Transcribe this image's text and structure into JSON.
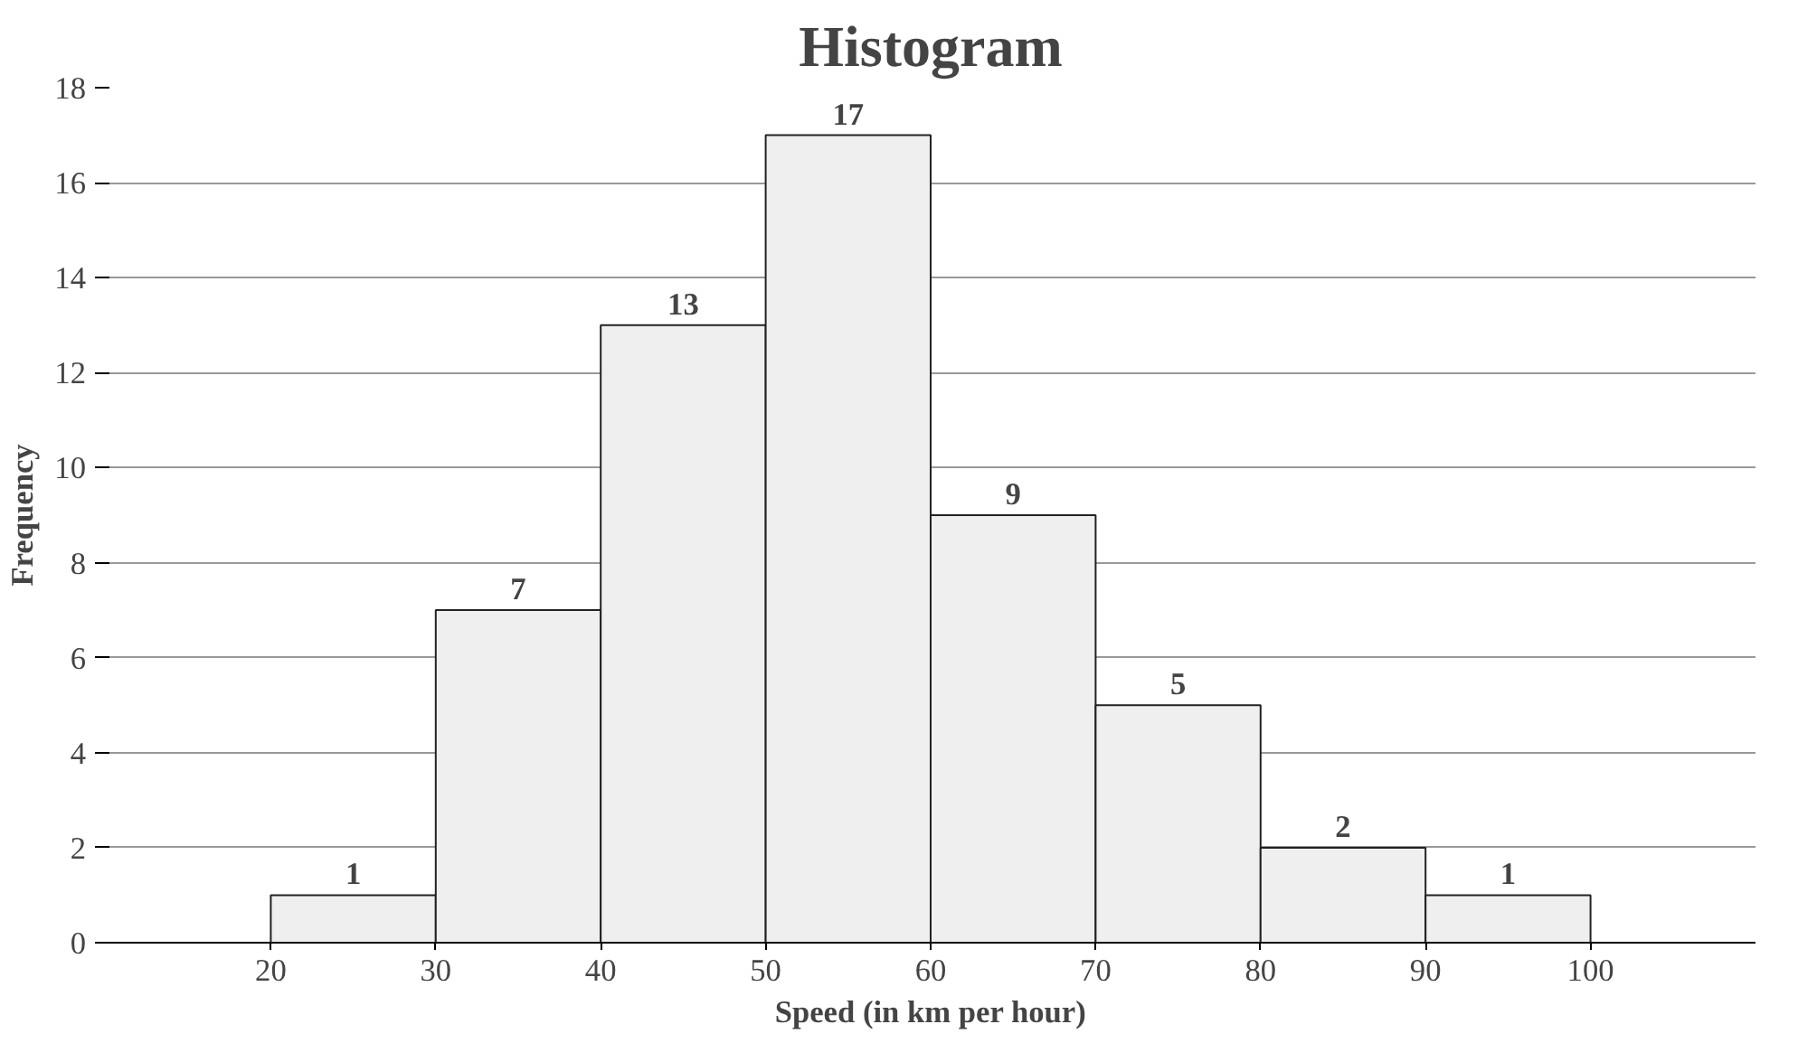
{
  "chart_data": {
    "type": "histogram",
    "title": "Histogram",
    "xlabel": "Speed (in km per hour)",
    "ylabel": "Frequency",
    "bins": [
      20,
      30,
      40,
      50,
      60,
      70,
      80,
      90,
      100
    ],
    "values": [
      1,
      7,
      13,
      17,
      9,
      5,
      2,
      1
    ],
    "color": "#efefef",
    "xlim": [
      10,
      110
    ],
    "xticks": [
      20,
      30,
      40,
      50,
      60,
      70,
      80,
      90,
      100
    ],
    "ylim": [
      0,
      18
    ],
    "yticks": [
      0,
      2,
      4,
      6,
      8,
      10,
      12,
      14,
      16,
      18
    ],
    "grid": "y",
    "data_labels": true
  }
}
